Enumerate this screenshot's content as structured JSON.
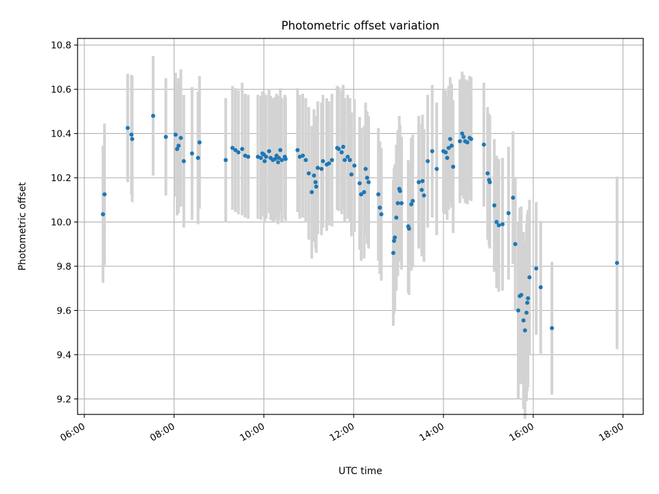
{
  "chart_data": {
    "type": "scatter",
    "title": "Photometric offset variation",
    "xlabel": "UTC time",
    "ylabel": "Photometric offset",
    "x_unit": "UTC hours",
    "xlim": [
      "05:51",
      "18:27"
    ],
    "ylim": [
      9.13,
      10.83
    ],
    "x_ticks": [
      "06:00",
      "08:00",
      "10:00",
      "12:00",
      "14:00",
      "16:00",
      "18:00"
    ],
    "y_ticks": [
      9.2,
      9.4,
      9.6,
      9.8,
      10.0,
      10.2,
      10.4,
      10.6,
      10.8
    ],
    "y_tick_labels": [
      "9.2",
      "9.4",
      "9.6",
      "9.8",
      "10.0",
      "10.2",
      "10.4",
      "10.6",
      "10.8"
    ],
    "grid": true,
    "legend": "none",
    "colors": {
      "points": "#1f77b4",
      "errorbars": "#d3d3d3",
      "grid": "#b0b0b0"
    },
    "points": [
      [
        "06:25",
        10.035,
        0.31
      ],
      [
        "06:27",
        10.125,
        0.32
      ],
      [
        "06:58",
        10.425,
        0.245
      ],
      [
        "07:03",
        10.395,
        0.27
      ],
      [
        "07:04",
        10.375,
        0.285
      ],
      [
        "07:32",
        10.48,
        0.27
      ],
      [
        "07:49",
        10.385,
        0.265
      ],
      [
        "08:02",
        10.395,
        0.28
      ],
      [
        "08:04",
        10.33,
        0.3
      ],
      [
        "08:06",
        10.345,
        0.305
      ],
      [
        "08:09",
        10.38,
        0.31
      ],
      [
        "08:13",
        10.275,
        0.3
      ],
      [
        "08:24",
        10.31,
        0.3
      ],
      [
        "08:32",
        10.29,
        0.3
      ],
      [
        "08:34",
        10.36,
        0.3
      ],
      [
        "09:09",
        10.28,
        0.28
      ],
      [
        "09:18",
        10.335,
        0.28
      ],
      [
        "09:22",
        10.325,
        0.28
      ],
      [
        "09:26",
        10.315,
        0.28
      ],
      [
        "09:31",
        10.33,
        0.3
      ],
      [
        "09:35",
        10.3,
        0.28
      ],
      [
        "09:39",
        10.295,
        0.28
      ],
      [
        "09:52",
        10.295,
        0.28
      ],
      [
        "09:56",
        10.29,
        0.28
      ],
      [
        "09:58",
        10.31,
        0.28
      ],
      [
        "10:00",
        10.305,
        0.28
      ],
      [
        "10:01",
        10.275,
        0.28
      ],
      [
        "10:03",
        10.295,
        0.28
      ],
      [
        "10:07",
        10.32,
        0.28
      ],
      [
        "10:09",
        10.29,
        0.28
      ],
      [
        "10:12",
        10.28,
        0.28
      ],
      [
        "10:15",
        10.285,
        0.28
      ],
      [
        "10:17",
        10.3,
        0.28
      ],
      [
        "10:19",
        10.27,
        0.28
      ],
      [
        "10:20",
        10.29,
        0.28
      ],
      [
        "10:22",
        10.325,
        0.28
      ],
      [
        "10:24",
        10.28,
        0.28
      ],
      [
        "10:28",
        10.295,
        0.28
      ],
      [
        "10:29",
        10.285,
        0.28
      ],
      [
        "10:45",
        10.325,
        0.28
      ],
      [
        "10:48",
        10.295,
        0.28
      ],
      [
        "10:52",
        10.3,
        0.28
      ],
      [
        "10:56",
        10.28,
        0.28
      ],
      [
        "11:00",
        10.22,
        0.3
      ],
      [
        "11:04",
        10.135,
        0.3
      ],
      [
        "11:07",
        10.21,
        0.3
      ],
      [
        "11:09",
        10.18,
        0.3
      ],
      [
        "11:10",
        10.16,
        0.3
      ],
      [
        "11:12",
        10.245,
        0.3
      ],
      [
        "11:17",
        10.24,
        0.3
      ],
      [
        "11:19",
        10.275,
        0.3
      ],
      [
        "11:24",
        10.26,
        0.3
      ],
      [
        "11:27",
        10.265,
        0.28
      ],
      [
        "11:31",
        10.28,
        0.3
      ],
      [
        "11:38",
        10.335,
        0.28
      ],
      [
        "11:40",
        10.33,
        0.28
      ],
      [
        "11:44",
        10.315,
        0.28
      ],
      [
        "11:46",
        10.34,
        0.28
      ],
      [
        "11:48",
        10.28,
        0.28
      ],
      [
        "11:52",
        10.295,
        0.28
      ],
      [
        "11:55",
        10.28,
        0.28
      ],
      [
        "11:57",
        10.215,
        0.28
      ],
      [
        "12:01",
        10.255,
        0.3
      ],
      [
        "12:08",
        10.175,
        0.3
      ],
      [
        "12:10",
        10.125,
        0.3
      ],
      [
        "12:14",
        10.135,
        0.3
      ],
      [
        "12:16",
        10.24,
        0.3
      ],
      [
        "12:18",
        10.2,
        0.3
      ],
      [
        "12:20",
        10.18,
        0.3
      ],
      [
        "12:33",
        10.125,
        0.3
      ],
      [
        "12:35",
        10.065,
        0.3
      ],
      [
        "12:37",
        10.035,
        0.3
      ],
      [
        "12:53",
        9.86,
        0.33
      ],
      [
        "12:54",
        9.915,
        0.33
      ],
      [
        "12:55",
        9.93,
        0.33
      ],
      [
        "12:57",
        10.02,
        0.33
      ],
      [
        "12:59",
        10.085,
        0.33
      ],
      [
        "13:01",
        10.15,
        0.33
      ],
      [
        "13:02",
        10.14,
        0.3
      ],
      [
        "13:04",
        10.085,
        0.3
      ],
      [
        "13:13",
        9.98,
        0.3
      ],
      [
        "13:14",
        9.97,
        0.3
      ],
      [
        "13:17",
        10.08,
        0.3
      ],
      [
        "13:19",
        10.095,
        0.3
      ],
      [
        "13:27",
        10.18,
        0.3
      ],
      [
        "13:31",
        10.145,
        0.3
      ],
      [
        "13:32",
        10.185,
        0.3
      ],
      [
        "13:34",
        10.12,
        0.3
      ],
      [
        "13:39",
        10.275,
        0.3
      ],
      [
        "13:45",
        10.32,
        0.3
      ],
      [
        "13:51",
        10.24,
        0.3
      ],
      [
        "14:00",
        10.32,
        0.28
      ],
      [
        "14:03",
        10.315,
        0.28
      ],
      [
        "14:05",
        10.29,
        0.28
      ],
      [
        "14:07",
        10.335,
        0.28
      ],
      [
        "14:09",
        10.375,
        0.28
      ],
      [
        "14:11",
        10.345,
        0.28
      ],
      [
        "14:13",
        10.25,
        0.3
      ],
      [
        "14:22",
        10.365,
        0.28
      ],
      [
        "14:25",
        10.4,
        0.28
      ],
      [
        "14:27",
        10.385,
        0.28
      ],
      [
        "14:29",
        10.365,
        0.28
      ],
      [
        "14:32",
        10.36,
        0.28
      ],
      [
        "14:35",
        10.38,
        0.28
      ],
      [
        "14:37",
        10.375,
        0.28
      ],
      [
        "14:54",
        10.35,
        0.28
      ],
      [
        "14:59",
        10.22,
        0.3
      ],
      [
        "15:01",
        10.19,
        0.3
      ],
      [
        "15:02",
        10.18,
        0.3
      ],
      [
        "15:08",
        10.075,
        0.3
      ],
      [
        "15:11",
        10.0,
        0.3
      ],
      [
        "15:14",
        9.985,
        0.3
      ],
      [
        "15:19",
        9.99,
        0.3
      ],
      [
        "15:27",
        10.04,
        0.3
      ],
      [
        "15:33",
        10.11,
        0.3
      ],
      [
        "15:36",
        9.9,
        0.3
      ],
      [
        "15:40",
        9.6,
        0.4
      ],
      [
        "15:42",
        9.665,
        0.4
      ],
      [
        "15:44",
        9.67,
        0.4
      ],
      [
        "15:47",
        9.555,
        0.4
      ],
      [
        "15:49",
        9.51,
        0.4
      ],
      [
        "15:51",
        9.59,
        0.4
      ],
      [
        "15:52",
        9.635,
        0.4
      ],
      [
        "15:53",
        9.655,
        0.4
      ],
      [
        "15:55",
        9.75,
        0.35
      ],
      [
        "16:04",
        9.79,
        0.3
      ],
      [
        "16:10",
        9.705,
        0.3
      ],
      [
        "16:25",
        9.52,
        0.3
      ],
      [
        "17:52",
        9.815,
        0.39
      ]
    ]
  }
}
